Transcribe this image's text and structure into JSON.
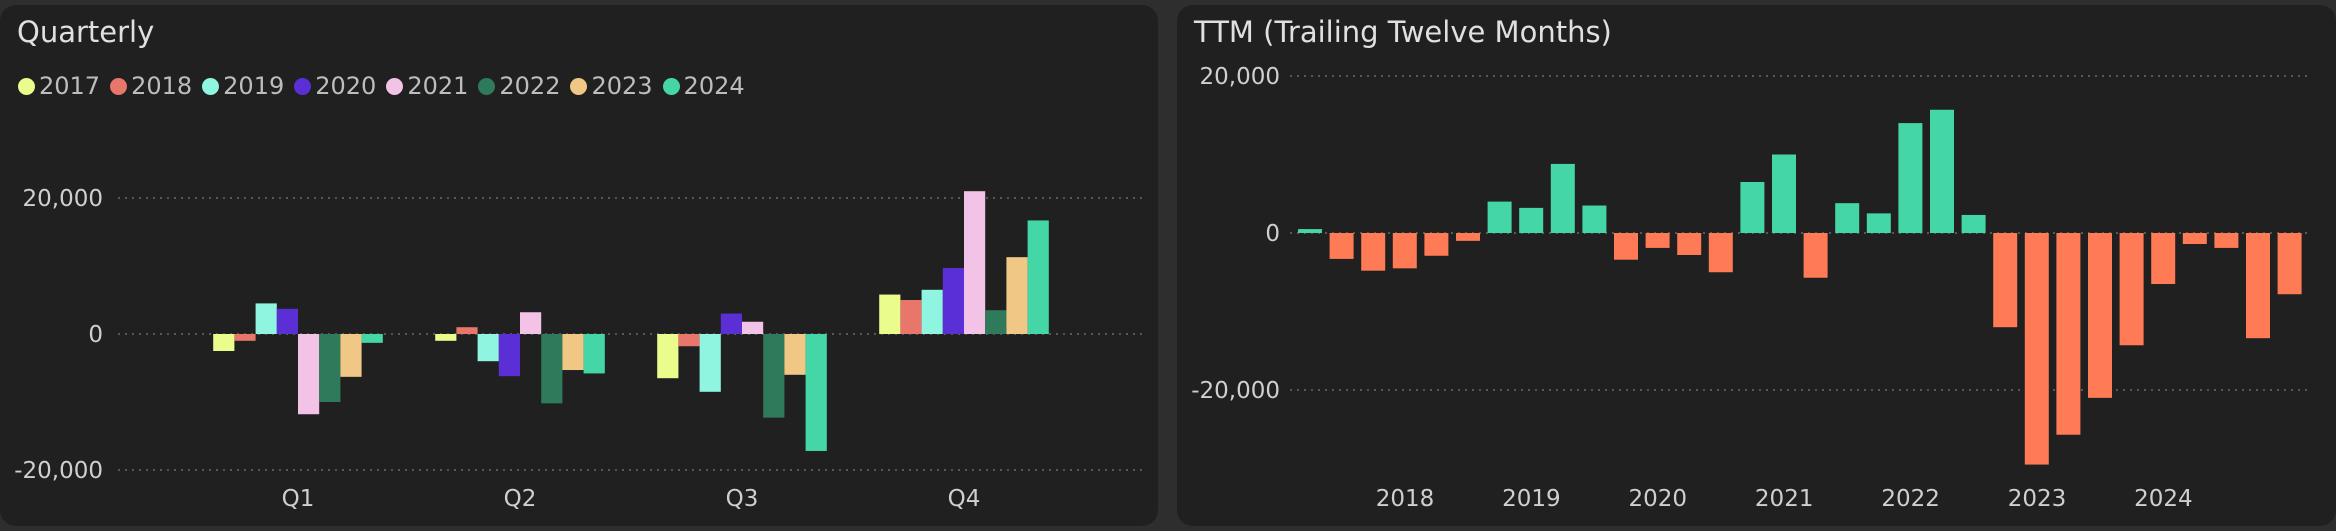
{
  "panels": {
    "quarterly": {
      "title": "Quarterly"
    },
    "ttm": {
      "title": "TTM (Trailing Twelve Months)"
    }
  },
  "chart_data": [
    {
      "type": "bar",
      "title": "Quarterly",
      "categories": [
        "Q1",
        "Q2",
        "Q3",
        "Q4"
      ],
      "ylim": [
        -20000,
        20000
      ],
      "yticks": [
        -20000,
        0,
        20000
      ],
      "ytick_labels": [
        "-20,000",
        "0",
        "20,000"
      ],
      "grid": true,
      "legend": "top-left",
      "series": [
        {
          "name": "2017",
          "color": "#eafc8c",
          "values": [
            -2500,
            -1000,
            -6500,
            5800
          ]
        },
        {
          "name": "2018",
          "color": "#e8766b",
          "values": [
            -1000,
            1000,
            -1800,
            5000
          ]
        },
        {
          "name": "2019",
          "color": "#8ff5e0",
          "values": [
            4500,
            -4000,
            -8500,
            6500
          ]
        },
        {
          "name": "2020",
          "color": "#5a2fd6",
          "values": [
            3700,
            -6200,
            3000,
            9700
          ]
        },
        {
          "name": "2021",
          "color": "#f2c3e6",
          "values": [
            -11800,
            3200,
            1800,
            21000
          ]
        },
        {
          "name": "2022",
          "color": "#2e7a5a",
          "values": [
            -10000,
            -10200,
            -12300,
            3500
          ]
        },
        {
          "name": "2023",
          "color": "#f0c784",
          "values": [
            -6300,
            -5300,
            -6000,
            11300
          ]
        },
        {
          "name": "2024",
          "color": "#45d6a8",
          "values": [
            -1300,
            -5800,
            -17200,
            16700
          ]
        }
      ]
    },
    {
      "type": "bar",
      "title": "TTM (Trailing Twelve Months)",
      "ylim": [
        -20000,
        20000
      ],
      "yticks": [
        -20000,
        0,
        20000
      ],
      "ytick_labels": [
        "-20,000",
        "0",
        "20,000"
      ],
      "xticks": [
        "2018",
        "2019",
        "2020",
        "2021",
        "2022",
        "2023",
        "2024"
      ],
      "grid": true,
      "positive_color": "#45d6a8",
      "negative_color": "#ff7b55",
      "values": [
        500,
        -3300,
        -4800,
        -4500,
        -2900,
        -1000,
        4000,
        3200,
        8800,
        3500,
        -3400,
        -1900,
        -2800,
        -5000,
        6500,
        10000,
        -5700,
        3800,
        2500,
        14000,
        15700,
        2300,
        -12000,
        -29500,
        -25700,
        -21000,
        -14300,
        -6500,
        -1400,
        -1900,
        -13400,
        -7800
      ]
    }
  ]
}
